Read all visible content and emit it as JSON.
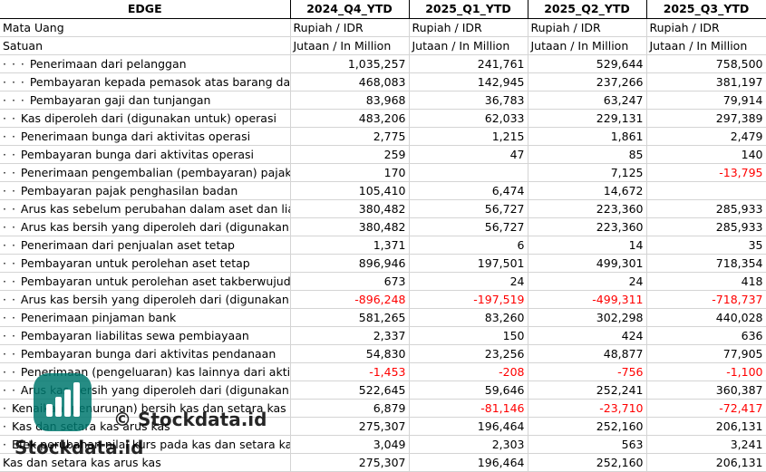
{
  "header": [
    "EDGE",
    "2024_Q4_YTD",
    "2025_Q1_YTD",
    "2025_Q2_YTD",
    "2025_Q3_YTD"
  ],
  "meta_rows": [
    {
      "label": "Mata Uang",
      "values": [
        "Rupiah / IDR",
        "Rupiah / IDR",
        "Rupiah / IDR",
        "Rupiah / IDR"
      ]
    },
    {
      "label": "Satuan",
      "values": [
        "Jutaan / In Million",
        "Jutaan / In Million",
        "Jutaan / In Million",
        "Jutaan / In Million"
      ]
    }
  ],
  "rows": [
    {
      "prefix": "· · · ",
      "label": "Penerimaan dari pelanggan",
      "values": [
        "1,035,257",
        "241,761",
        "529,644",
        "758,500"
      ]
    },
    {
      "prefix": "· · · ",
      "label": "Pembayaran kepada pemasok atas barang dan ja",
      "values": [
        "468,083",
        "142,945",
        "237,266",
        "381,197"
      ]
    },
    {
      "prefix": "· · · ",
      "label": "Pembayaran gaji dan tunjangan",
      "values": [
        "83,968",
        "36,783",
        "63,247",
        "79,914"
      ]
    },
    {
      "prefix": "· · ",
      "label": "Kas diperoleh dari (digunakan untuk) operasi",
      "values": [
        "483,206",
        "62,033",
        "229,131",
        "297,389"
      ]
    },
    {
      "prefix": "· · ",
      "label": "Penerimaan bunga dari aktivitas operasi",
      "values": [
        "2,775",
        "1,215",
        "1,861",
        "2,479"
      ]
    },
    {
      "prefix": "· · ",
      "label": "Pembayaran bunga dari aktivitas operasi",
      "values": [
        "259",
        "47",
        "85",
        "140"
      ]
    },
    {
      "prefix": "· · ",
      "label": "Penerimaan pengembalian (pembayaran) pajak p",
      "values": [
        "170",
        "",
        "7,125",
        "-13,795"
      ]
    },
    {
      "prefix": "· · ",
      "label": "Pembayaran pajak penghasilan badan",
      "values": [
        "105,410",
        "6,474",
        "14,672",
        ""
      ]
    },
    {
      "prefix": "· · ",
      "label": "Arus kas sebelum perubahan dalam aset dan liabi",
      "values": [
        "380,482",
        "56,727",
        "223,360",
        "285,933"
      ]
    },
    {
      "prefix": "· · ",
      "label": "Arus kas bersih yang diperoleh dari (digunakan u",
      "values": [
        "380,482",
        "56,727",
        "223,360",
        "285,933"
      ]
    },
    {
      "prefix": "· · ",
      "label": "Penerimaan dari penjualan aset tetap",
      "values": [
        "1,371",
        "6",
        "14",
        "35"
      ]
    },
    {
      "prefix": "· · ",
      "label": "Pembayaran untuk perolehan aset tetap",
      "values": [
        "896,946",
        "197,501",
        "499,301",
        "718,354"
      ]
    },
    {
      "prefix": "· · ",
      "label": "Pembayaran untuk perolehan aset takberwujud",
      "values": [
        "673",
        "24",
        "24",
        "418"
      ]
    },
    {
      "prefix": "· · ",
      "label": "Arus kas bersih yang diperoleh dari (digunakan u",
      "values": [
        "-896,248",
        "-197,519",
        "-499,311",
        "-718,737"
      ]
    },
    {
      "prefix": "· · ",
      "label": "Penerimaan pinjaman bank",
      "values": [
        "581,265",
        "83,260",
        "302,298",
        "440,028"
      ]
    },
    {
      "prefix": "· · ",
      "label": "Pembayaran liabilitas sewa pembiayaan",
      "values": [
        "2,337",
        "150",
        "424",
        "636"
      ]
    },
    {
      "prefix": "· · ",
      "label": "Pembayaran bunga dari aktivitas pendanaan",
      "values": [
        "54,830",
        "23,256",
        "48,877",
        "77,905"
      ]
    },
    {
      "prefix": "· · ",
      "label": "Penerimaan (pengeluaran) kas lainnya dari aktivit",
      "values": [
        "-1,453",
        "-208",
        "-756",
        "-1,100"
      ]
    },
    {
      "prefix": "· · ",
      "label": "Arus kas bersih yang diperoleh dari (digunakan u",
      "values": [
        "522,645",
        "59,646",
        "252,241",
        "360,387"
      ]
    },
    {
      "prefix": "· ",
      "label": "Kenaikan (penurunan) bersih kas dan setara kas",
      "values": [
        "6,879",
        "-81,146",
        "-23,710",
        "-72,417"
      ]
    },
    {
      "prefix": "· ",
      "label": "Kas dan setara kas arus kas",
      "values": [
        "275,307",
        "196,464",
        "252,160",
        "206,131"
      ]
    },
    {
      "prefix": "· ",
      "label": "Efek perubahan nilai kurs pada kas dan setara kas",
      "values": [
        "3,049",
        "2,303",
        "563",
        "3,241"
      ]
    },
    {
      "prefix": "",
      "label": "Kas dan setara kas arus kas",
      "values": [
        "275,307",
        "196,464",
        "252,160",
        "206,131"
      ]
    }
  ],
  "watermark": {
    "copyright": "© Stockdata.id",
    "brand": "Stockdata.id",
    "logo_color": "#007a6e"
  },
  "colors": {
    "negative": "#ff0000",
    "grid": "#d4d4d4"
  }
}
